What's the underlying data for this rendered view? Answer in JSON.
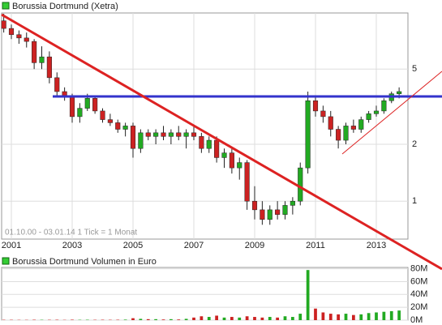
{
  "chart_data": [
    {
      "type": "candlestick",
      "title": "Borussia Dortmund (Xetra)",
      "annotation": "01.10.00 - 03.01.14   1 Tick = 1 Monat",
      "x": [
        2000.75,
        2001,
        2001.25,
        2001.5,
        2001.75,
        2002,
        2002.25,
        2002.5,
        2002.75,
        2003,
        2003.25,
        2003.5,
        2003.75,
        2004,
        2004.25,
        2004.5,
        2004.75,
        2005,
        2005.25,
        2005.5,
        2005.75,
        2006,
        2006.25,
        2006.5,
        2006.75,
        2007,
        2007.25,
        2007.5,
        2007.75,
        2008,
        2008.25,
        2008.5,
        2008.75,
        2009,
        2009.25,
        2009.5,
        2009.75,
        2010,
        2010.25,
        2010.5,
        2010.75,
        2011,
        2011.25,
        2011.5,
        2011.75,
        2012,
        2012.25,
        2012.5,
        2012.75,
        2013,
        2013.25,
        2013.5,
        2013.75
      ],
      "open": [
        9.0,
        8.2,
        7.6,
        7.3,
        7.0,
        5.4,
        5.8,
        4.5,
        3.8,
        3.6,
        2.8,
        3.1,
        3.5,
        3.0,
        2.7,
        2.6,
        2.4,
        2.5,
        1.9,
        2.3,
        2.2,
        2.3,
        2.2,
        2.3,
        2.2,
        2.3,
        2.2,
        1.9,
        2.1,
        1.7,
        1.8,
        1.5,
        1.6,
        1.0,
        0.9,
        0.8,
        0.9,
        0.85,
        0.95,
        1.0,
        1.5,
        3.4,
        3.0,
        2.8,
        2.4,
        2.1,
        2.5,
        2.4,
        2.7,
        2.9,
        3.0,
        3.4,
        3.7
      ],
      "high": [
        9.8,
        8.6,
        8.0,
        7.8,
        7.2,
        6.6,
        6.2,
        4.8,
        4.0,
        3.7,
        3.3,
        3.7,
        3.6,
        3.1,
        2.9,
        2.7,
        2.6,
        2.6,
        2.4,
        2.4,
        2.4,
        2.5,
        2.4,
        2.5,
        2.4,
        2.5,
        2.3,
        2.2,
        2.2,
        1.9,
        1.9,
        1.7,
        1.65,
        1.2,
        1.0,
        0.95,
        1.0,
        1.0,
        1.05,
        1.6,
        3.8,
        3.6,
        3.2,
        3.0,
        2.5,
        2.6,
        2.7,
        2.8,
        3.0,
        3.2,
        3.5,
        3.8,
        4.0
      ],
      "low": [
        7.8,
        7.2,
        6.8,
        6.5,
        5.0,
        5.0,
        4.2,
        3.6,
        3.4,
        2.6,
        2.6,
        3.0,
        2.9,
        2.6,
        2.5,
        2.3,
        2.2,
        1.7,
        1.8,
        2.1,
        2.0,
        2.1,
        2.0,
        2.1,
        1.9,
        2.1,
        1.8,
        1.8,
        1.6,
        1.5,
        1.4,
        1.3,
        0.9,
        0.8,
        0.75,
        0.75,
        0.8,
        0.8,
        0.85,
        0.95,
        1.4,
        2.8,
        2.6,
        2.2,
        1.9,
        2.0,
        2.3,
        2.3,
        2.6,
        2.8,
        2.9,
        3.3,
        3.5
      ],
      "close": [
        8.2,
        7.6,
        7.3,
        7.0,
        5.4,
        5.8,
        4.5,
        3.8,
        3.6,
        2.8,
        3.1,
        3.5,
        3.0,
        2.7,
        2.6,
        2.4,
        2.5,
        1.9,
        2.3,
        2.2,
        2.3,
        2.2,
        2.3,
        2.2,
        2.3,
        2.2,
        1.9,
        2.1,
        1.7,
        1.8,
        1.5,
        1.6,
        1.0,
        0.9,
        0.8,
        0.9,
        0.85,
        0.95,
        1.0,
        1.5,
        3.4,
        3.0,
        2.8,
        2.4,
        2.1,
        2.5,
        2.4,
        2.7,
        2.9,
        3.0,
        3.4,
        3.7,
        3.8
      ],
      "xlim": [
        2000.68,
        2014.04
      ],
      "ylim": [
        0.63,
        9.9
      ],
      "log_scale": true,
      "grid": true,
      "xticks": [
        2001,
        2003,
        2005,
        2007,
        2009,
        2011,
        2013
      ],
      "yticks": [
        1,
        2,
        5
      ],
      "up_color": "#22aa22",
      "down_color": "#cc2222"
    },
    {
      "type": "bar",
      "title": "Borussia Dortmund Volumen in Euro",
      "x": [
        2000.75,
        2001,
        2001.25,
        2001.5,
        2001.75,
        2002,
        2002.25,
        2002.5,
        2002.75,
        2003,
        2003.25,
        2003.5,
        2003.75,
        2004,
        2004.25,
        2004.5,
        2004.75,
        2005,
        2005.25,
        2005.5,
        2005.75,
        2006,
        2006.25,
        2006.5,
        2006.75,
        2007,
        2007.25,
        2007.5,
        2007.75,
        2008,
        2008.25,
        2008.5,
        2008.75,
        2009,
        2009.25,
        2009.5,
        2009.75,
        2010,
        2010.25,
        2010.5,
        2010.75,
        2011,
        2011.25,
        2011.5,
        2011.75,
        2012,
        2012.25,
        2012.5,
        2012.75,
        2013,
        2013.25,
        2013.5,
        2013.75
      ],
      "values": [
        0.5,
        0.5,
        0.4,
        0.4,
        0.6,
        0.5,
        0.5,
        0.6,
        0.4,
        0.7,
        0.5,
        0.6,
        0.5,
        0.6,
        0.5,
        0.6,
        0.8,
        3,
        2,
        1.5,
        1.5,
        1,
        1.5,
        1,
        2,
        4,
        6,
        5,
        7,
        4,
        5,
        4,
        6,
        5,
        4,
        5,
        4,
        6,
        5,
        10,
        78,
        18,
        12,
        10,
        9,
        10,
        8,
        9,
        11,
        12,
        13,
        14,
        15
      ],
      "xlim": [
        2000.68,
        2014.04
      ],
      "ylim": [
        0,
        82
      ],
      "yticks": [
        {
          "value": 0,
          "label": "0M"
        },
        {
          "value": 20,
          "label": "20M"
        },
        {
          "value": 40,
          "label": "40M"
        },
        {
          "value": 60,
          "label": "60M"
        },
        {
          "value": 80,
          "label": "80M"
        }
      ]
    }
  ]
}
